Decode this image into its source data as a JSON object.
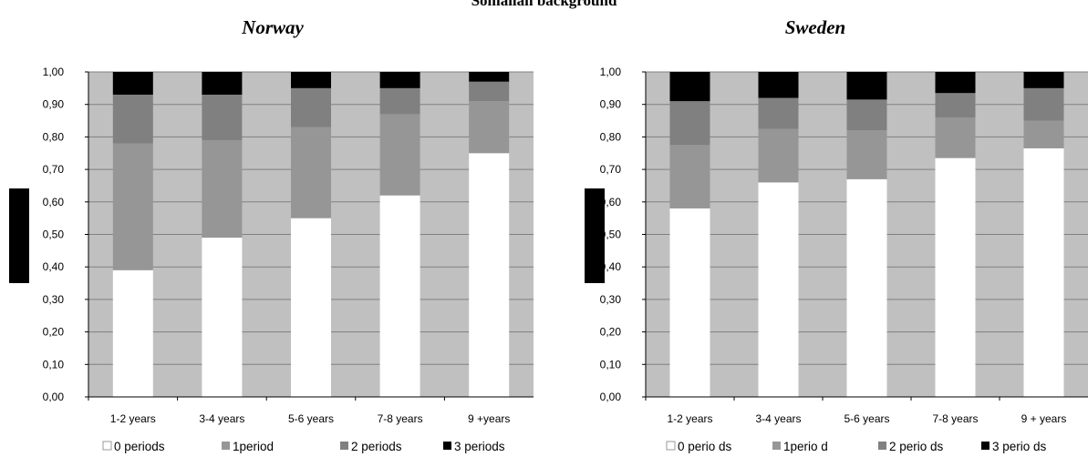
{
  "title": "Somalian background",
  "colors": {
    "plot_background": "#c0c0c0",
    "gridline": "#808080",
    "segments": [
      "#ffffff",
      "#969696",
      "#808080",
      "#000000"
    ]
  },
  "chart_data": [
    {
      "type": "bar",
      "stacked": true,
      "title": "Norway",
      "xlabel": "",
      "ylabel": "",
      "ylim": [
        0,
        1
      ],
      "y_ticks": [
        "0,00",
        "0,10",
        "0,20",
        "0,30",
        "0,40",
        "0,50",
        "0,60",
        "0,70",
        "0,80",
        "0,90",
        "1,00"
      ],
      "grid": true,
      "legend_position": "bottom",
      "categories": [
        "1-2 years",
        "3-4 years",
        "5-6 years",
        "7-8 years",
        "9 +years"
      ],
      "series": [
        {
          "name": "0 periods",
          "color": "#ffffff",
          "values": [
            0.39,
            0.49,
            0.55,
            0.62,
            0.75
          ]
        },
        {
          "name": "1period",
          "color": "#969696",
          "values": [
            0.39,
            0.3,
            0.28,
            0.25,
            0.16
          ]
        },
        {
          "name": "2 periods",
          "color": "#808080",
          "values": [
            0.15,
            0.14,
            0.12,
            0.08,
            0.06
          ]
        },
        {
          "name": "3 periods",
          "color": "#000000",
          "values": [
            0.07,
            0.07,
            0.05,
            0.06,
            0.03
          ]
        }
      ]
    },
    {
      "type": "bar",
      "stacked": true,
      "title": "Sweden",
      "xlabel": "",
      "ylabel": "",
      "ylim": [
        0,
        1
      ],
      "y_ticks": [
        "0,00",
        "0,10",
        "0,20",
        "0,30",
        "0,40",
        "0,50",
        "0,60",
        "0,70",
        "0,80",
        "0,90",
        "1,00"
      ],
      "grid": true,
      "legend_position": "bottom",
      "categories": [
        "1-2 years",
        "3-4 years",
        "5-6 years",
        "7-8 years",
        "9 + years"
      ],
      "series": [
        {
          "name": "0 perio ds",
          "color": "#ffffff",
          "values": [
            0.58,
            0.66,
            0.67,
            0.735,
            0.765
          ]
        },
        {
          "name": "1perio d",
          "color": "#969696",
          "values": [
            0.195,
            0.165,
            0.15,
            0.125,
            0.085
          ]
        },
        {
          "name": "2 perio ds",
          "color": "#808080",
          "values": [
            0.135,
            0.095,
            0.095,
            0.075,
            0.1
          ]
        },
        {
          "name": "3 perio ds",
          "color": "#000000",
          "values": [
            0.09,
            0.08,
            0.085,
            0.065,
            0.05
          ]
        }
      ]
    }
  ]
}
